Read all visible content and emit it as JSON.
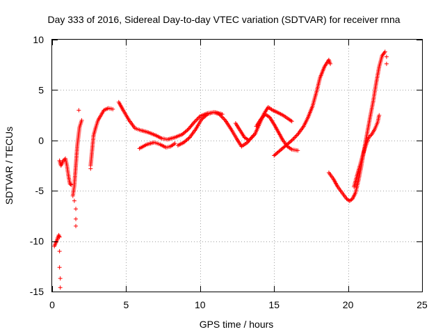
{
  "chart_data": {
    "type": "scatter",
    "title": "Day 333 of 2016, Sidereal Day-to-day VTEC variation (SDTVAR) for receiver rnna",
    "xlabel": "GPS time / hours",
    "ylabel": "SDTVAR / TECUs",
    "xlim": [
      0,
      25
    ],
    "ylim": [
      -15,
      10
    ],
    "xticks": [
      0,
      5,
      10,
      15,
      20,
      25
    ],
    "yticks": [
      -15,
      -10,
      -5,
      0,
      5,
      10
    ],
    "grid": true,
    "marker": "+",
    "color": "#ff0000",
    "tracks": [
      [
        [
          0.15,
          -10.5
        ],
        [
          0.3,
          -10.0
        ],
        [
          0.45,
          -9.4
        ],
        [
          0.5,
          -9.6
        ]
      ],
      [
        [
          0.5,
          -2.0
        ],
        [
          0.6,
          -2.5
        ],
        [
          0.75,
          -2.0
        ],
        [
          0.9,
          -1.8
        ],
        [
          1.0,
          -2.5
        ],
        [
          1.1,
          -3.5
        ],
        [
          1.2,
          -4.3
        ],
        [
          1.3,
          -4.4
        ]
      ],
      [
        [
          1.4,
          -5.5
        ],
        [
          1.5,
          -4.5
        ],
        [
          1.6,
          -2.5
        ],
        [
          1.7,
          -0.5
        ],
        [
          1.85,
          1.3
        ],
        [
          2.0,
          2.0
        ]
      ],
      [
        [
          2.6,
          -2.5
        ],
        [
          2.7,
          -1.0
        ],
        [
          2.8,
          0.5
        ],
        [
          2.95,
          1.3
        ],
        [
          3.1,
          2.0
        ],
        [
          3.3,
          2.5
        ],
        [
          3.5,
          3.0
        ],
        [
          3.8,
          3.2
        ],
        [
          4.1,
          3.1
        ]
      ],
      [
        [
          4.5,
          3.8
        ],
        [
          4.8,
          3.0
        ],
        [
          5.2,
          2.0
        ],
        [
          5.6,
          1.2
        ],
        [
          6.0,
          1.0
        ],
        [
          6.5,
          0.8
        ],
        [
          7.0,
          0.5
        ],
        [
          7.4,
          0.2
        ],
        [
          7.8,
          0.1
        ],
        [
          8.3,
          0.3
        ],
        [
          8.8,
          0.6
        ],
        [
          9.2,
          1.1
        ],
        [
          9.6,
          1.8
        ],
        [
          10.0,
          2.4
        ],
        [
          10.5,
          2.7
        ],
        [
          11.0,
          2.8
        ],
        [
          11.5,
          2.6
        ]
      ],
      [
        [
          5.9,
          -0.8
        ],
        [
          6.4,
          -0.4
        ],
        [
          6.9,
          -0.2
        ],
        [
          7.3,
          -0.4
        ],
        [
          7.7,
          -0.7
        ],
        [
          8.0,
          -0.6
        ],
        [
          8.3,
          -0.3
        ]
      ],
      [
        [
          8.5,
          -0.5
        ],
        [
          8.9,
          -0.2
        ],
        [
          9.3,
          0.3
        ],
        [
          9.7,
          1.1
        ],
        [
          10.1,
          2.1
        ],
        [
          10.5,
          2.6
        ],
        [
          10.9,
          2.8
        ],
        [
          11.3,
          2.6
        ],
        [
          11.7,
          2.0
        ],
        [
          12.1,
          1.1
        ],
        [
          12.5,
          0.1
        ],
        [
          12.8,
          -0.6
        ],
        [
          13.2,
          -0.2
        ],
        [
          13.6,
          0.5
        ]
      ],
      [
        [
          12.4,
          1.7
        ],
        [
          12.7,
          1.0
        ],
        [
          13.0,
          0.3
        ],
        [
          13.3,
          0.0
        ],
        [
          13.7,
          0.6
        ],
        [
          14.0,
          1.6
        ],
        [
          14.3,
          2.6
        ],
        [
          14.6,
          3.3
        ],
        [
          14.9,
          3.0
        ],
        [
          15.2,
          2.8
        ],
        [
          15.6,
          2.5
        ],
        [
          16.0,
          2.1
        ],
        [
          16.2,
          1.9
        ]
      ],
      [
        [
          13.8,
          1.4
        ],
        [
          14.1,
          2.1
        ],
        [
          14.4,
          2.6
        ],
        [
          14.7,
          2.3
        ],
        [
          15.0,
          1.6
        ],
        [
          15.3,
          0.8
        ],
        [
          15.6,
          0.0
        ],
        [
          15.9,
          -0.6
        ],
        [
          16.2,
          -0.9
        ],
        [
          16.6,
          -1.0
        ]
      ],
      [
        [
          15.0,
          -1.5
        ],
        [
          15.4,
          -1.0
        ],
        [
          15.8,
          -0.5
        ],
        [
          16.2,
          0.0
        ],
        [
          16.6,
          0.6
        ],
        [
          17.0,
          1.4
        ],
        [
          17.3,
          2.3
        ],
        [
          17.6,
          3.4
        ],
        [
          17.9,
          5.0
        ],
        [
          18.1,
          6.2
        ],
        [
          18.4,
          7.3
        ],
        [
          18.7,
          8.0
        ],
        [
          18.8,
          7.6
        ]
      ],
      [
        [
          18.7,
          -3.2
        ],
        [
          19.0,
          -3.8
        ],
        [
          19.3,
          -4.6
        ],
        [
          19.6,
          -5.2
        ],
        [
          19.9,
          -5.8
        ],
        [
          20.1,
          -6.0
        ],
        [
          20.3,
          -5.8
        ],
        [
          20.5,
          -5.2
        ],
        [
          20.7,
          -4.0
        ],
        [
          20.9,
          -2.5
        ],
        [
          21.1,
          -0.8
        ],
        [
          21.3,
          0.8
        ],
        [
          21.5,
          2.4
        ],
        [
          21.7,
          3.9
        ],
        [
          21.9,
          5.7
        ],
        [
          22.1,
          7.3
        ],
        [
          22.3,
          8.4
        ],
        [
          22.5,
          8.8
        ]
      ],
      [
        [
          20.4,
          -4.6
        ],
        [
          20.6,
          -3.5
        ],
        [
          20.8,
          -2.5
        ],
        [
          21.0,
          -1.4
        ],
        [
          21.2,
          -0.5
        ],
        [
          21.4,
          0.3
        ],
        [
          21.6,
          0.6
        ],
        [
          21.8,
          1.1
        ],
        [
          22.0,
          1.8
        ],
        [
          22.1,
          2.5
        ]
      ]
    ],
    "scatter_points": [
      [
        0.5,
        -11.0
      ],
      [
        0.5,
        -12.6
      ],
      [
        0.55,
        -13.7
      ],
      [
        0.55,
        -14.6
      ],
      [
        1.5,
        -6.0
      ],
      [
        1.6,
        -6.8
      ],
      [
        1.6,
        -7.8
      ],
      [
        1.6,
        -8.5
      ],
      [
        1.8,
        3.0
      ],
      [
        2.6,
        -2.8
      ],
      [
        22.6,
        8.3
      ],
      [
        22.6,
        7.6
      ]
    ]
  }
}
